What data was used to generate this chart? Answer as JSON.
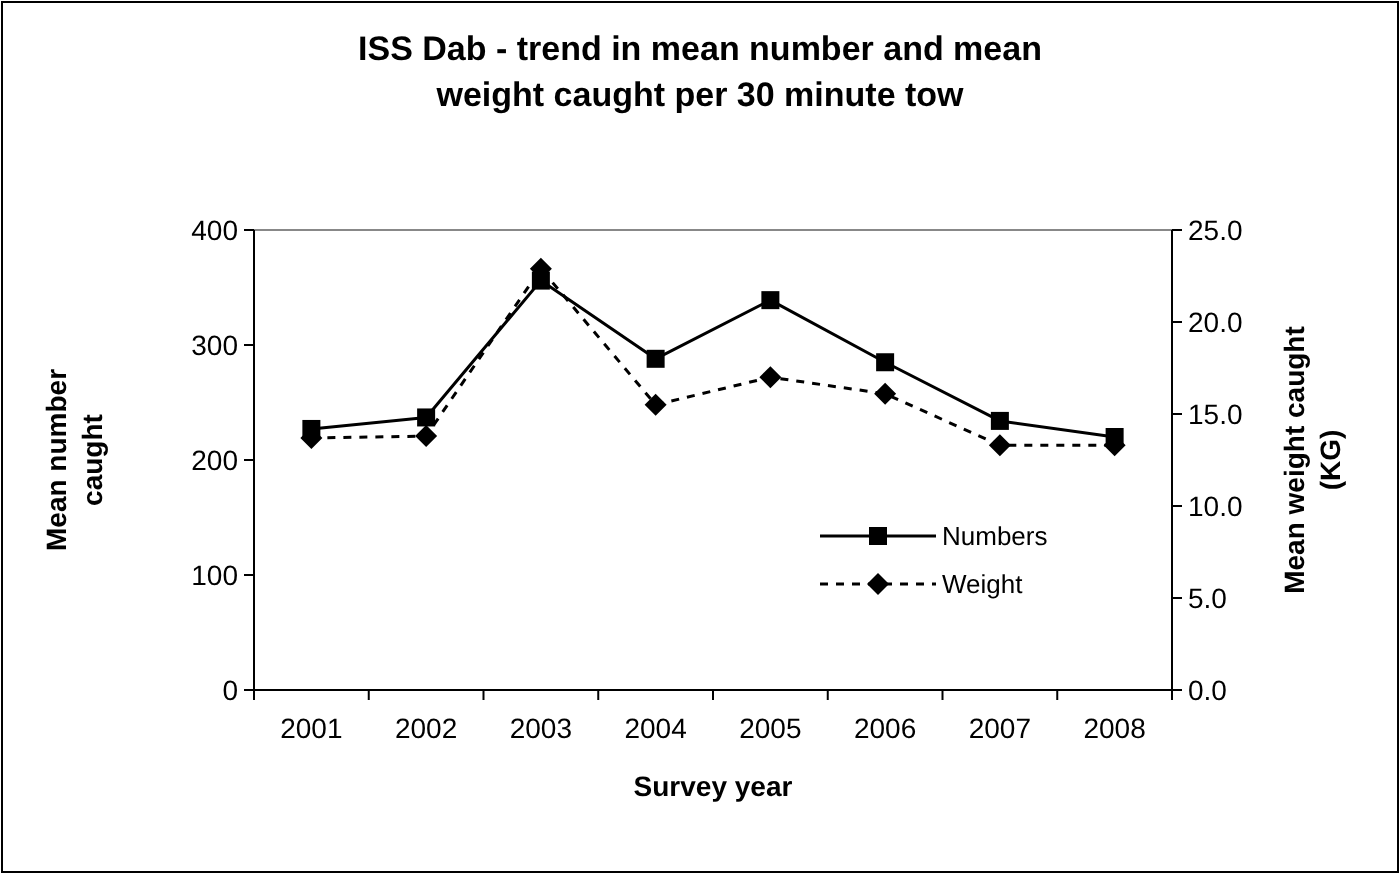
{
  "chart_data": {
    "type": "line",
    "title": "ISS Dab - trend in mean number and mean weight caught per 30 minute tow",
    "xlabel": "Survey year",
    "ylabel": "Mean number caught",
    "y2label": "Mean weight caught (KG)",
    "categories": [
      "2001",
      "2002",
      "2003",
      "2004",
      "2005",
      "2006",
      "2007",
      "2008"
    ],
    "ylim": [
      0,
      400
    ],
    "yticks": [
      0,
      100,
      200,
      300,
      400
    ],
    "y2lim": [
      0,
      25
    ],
    "y2ticks": [
      {
        "value": 0,
        "label": "0.0"
      },
      {
        "value": 5,
        "label": "5.0"
      },
      {
        "value": 10,
        "label": "10.0"
      },
      {
        "value": 15,
        "label": "15.0"
      },
      {
        "value": 20,
        "label": "20.0"
      },
      {
        "value": 25,
        "label": "25.0"
      }
    ],
    "legend": "right",
    "grid": false,
    "series": [
      {
        "name": "Numbers",
        "color": "#000000",
        "marker": "square",
        "line_style": "solid",
        "values": [
          227,
          237,
          356,
          288,
          339,
          285,
          234,
          220
        ]
      },
      {
        "name": "Weight",
        "color": "#000000",
        "marker": "diamond",
        "line_style": "dashed",
        "axis": "y2",
        "values": [
          13.7,
          13.8,
          22.9,
          15.5,
          17.0,
          16.1,
          13.3,
          13.3
        ]
      }
    ]
  }
}
